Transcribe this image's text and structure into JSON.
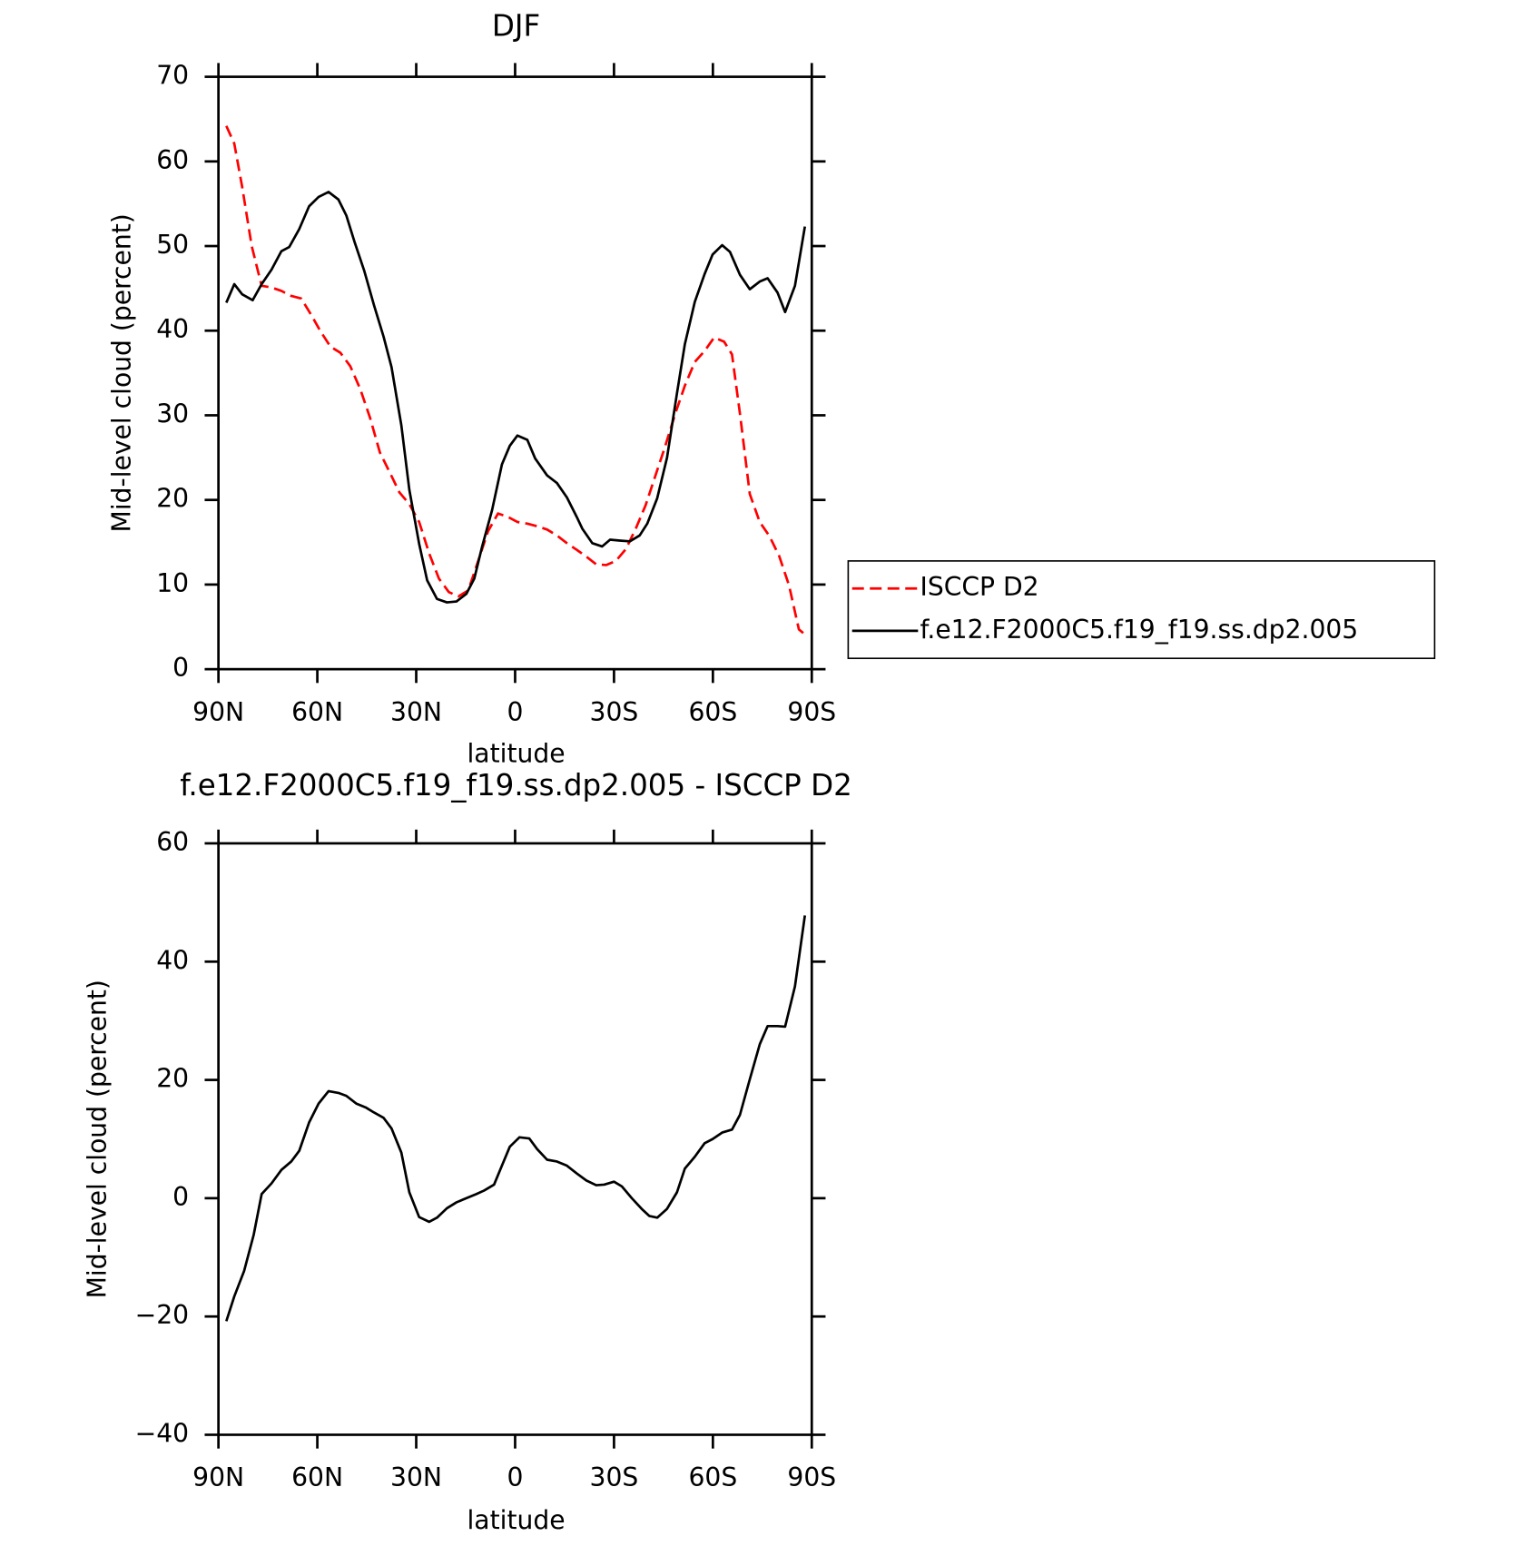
{
  "chart_data": [
    {
      "type": "line",
      "title": "DJF",
      "xlabel": "latitude",
      "ylabel": "Mid-level cloud (percent)",
      "xlim": [
        90,
        -90
      ],
      "xticks": [
        {
          "value": 90,
          "label": "90N"
        },
        {
          "value": 60,
          "label": "60N"
        },
        {
          "value": 30,
          "label": "30N"
        },
        0,
        {
          "value": -30,
          "label": "30S"
        },
        {
          "value": -60,
          "label": "60S"
        },
        {
          "value": -90,
          "label": "90S"
        }
      ],
      "ylim": [
        0,
        70
      ],
      "yticks": [
        0,
        10,
        20,
        30,
        40,
        50,
        60,
        70
      ],
      "legend": "right",
      "series": [
        {
          "name": "ISCCP D2",
          "color": "#ff0000",
          "linestyle": "dashed",
          "x": [
            87.6,
            85.2,
            82.8,
            79.9,
            76.9,
            73.9,
            70.9,
            67.9,
            64.9,
            61.9,
            59.0,
            56.0,
            53.0,
            50.0,
            47.0,
            44.0,
            41.0,
            38.1,
            35.1,
            32.1,
            29.1,
            26.1,
            23.1,
            20.1,
            17.2,
            14.2,
            11.2,
            8.2,
            5.2,
            2.2,
            -0.7,
            -3.7,
            -6.7,
            -9.7,
            -12.7,
            -15.7,
            -18.7,
            -21.6,
            -24.6,
            -27.6,
            -30.6,
            -33.6,
            -36.6,
            -39.6,
            -42.5,
            -45.5,
            -48.5,
            -51.5,
            -54.5,
            -57.5,
            -60.4,
            -63.4,
            -65.8,
            -68.2,
            -71.2,
            -74.2,
            -77.2,
            -80.1,
            -83.1,
            -86.1,
            -87.9
          ],
          "values": [
            64.2,
            62.1,
            57.0,
            50.0,
            45.3,
            45.1,
            44.7,
            44.1,
            43.8,
            41.9,
            39.9,
            38.1,
            37.4,
            35.8,
            33.1,
            29.7,
            25.6,
            23.3,
            20.9,
            19.5,
            17.4,
            13.7,
            10.7,
            9.1,
            8.6,
            9.3,
            12.8,
            16.3,
            18.4,
            18.0,
            17.4,
            17.2,
            16.9,
            16.5,
            15.8,
            14.9,
            14.1,
            13.3,
            12.4,
            12.3,
            12.8,
            14.2,
            16.6,
            19.4,
            22.8,
            26.3,
            30.1,
            33.5,
            36.3,
            37.6,
            39.2,
            38.7,
            37.2,
            30.2,
            20.7,
            17.4,
            15.7,
            13.4,
            9.9,
            4.7,
            4.1
          ]
        },
        {
          "name": "f.e12.F2000C5.f19_f19.ss.dp2.005",
          "color": "#000000",
          "linestyle": "solid",
          "x": [
            87.6,
            85.2,
            82.8,
            79.6,
            76.9,
            73.9,
            70.9,
            68.5,
            65.5,
            62.5,
            59.6,
            56.6,
            53.6,
            51.2,
            48.8,
            45.8,
            42.8,
            39.9,
            37.5,
            34.5,
            32.1,
            29.1,
            26.7,
            23.7,
            20.7,
            17.8,
            14.8,
            12.4,
            10.0,
            7.0,
            4.0,
            1.6,
            -0.7,
            -3.7,
            -6.1,
            -9.7,
            -12.7,
            -15.7,
            -18.7,
            -20.4,
            -23.4,
            -26.4,
            -28.8,
            -31.8,
            -34.8,
            -37.8,
            -40.1,
            -43.1,
            -46.1,
            -49.1,
            -51.5,
            -54.5,
            -57.5,
            -59.9,
            -62.8,
            -65.2,
            -68.2,
            -71.2,
            -74.2,
            -76.6,
            -79.6,
            -81.9,
            -84.9,
            -87.9
          ],
          "values": [
            43.3,
            45.5,
            44.3,
            43.6,
            45.5,
            47.2,
            49.4,
            49.9,
            52.0,
            54.7,
            55.8,
            56.4,
            55.5,
            53.6,
            50.6,
            47.1,
            43.0,
            39.3,
            35.7,
            28.8,
            21.2,
            14.8,
            10.5,
            8.3,
            7.9,
            8.0,
            8.9,
            10.7,
            14.5,
            18.8,
            24.2,
            26.4,
            27.6,
            27.1,
            24.9,
            22.9,
            22.0,
            20.3,
            18.0,
            16.6,
            14.9,
            14.5,
            15.3,
            15.2,
            15.1,
            15.8,
            17.2,
            20.2,
            25.0,
            32.6,
            38.4,
            43.4,
            46.7,
            49.0,
            50.1,
            49.3,
            46.6,
            44.9,
            45.8,
            46.2,
            44.5,
            42.2,
            45.3,
            52.3
          ]
        }
      ]
    },
    {
      "type": "line",
      "title": "f.e12.F2000C5.f19_f19.ss.dp2.005 - ISCCP D2",
      "xlabel": "latitude",
      "ylabel": "Mid-level cloud (percent)",
      "xlim": [
        90,
        -90
      ],
      "xticks": [
        {
          "value": 90,
          "label": "90N"
        },
        {
          "value": 60,
          "label": "60N"
        },
        {
          "value": 30,
          "label": "30N"
        },
        0,
        {
          "value": -30,
          "label": "30S"
        },
        {
          "value": -60,
          "label": "60S"
        },
        {
          "value": -90,
          "label": "90S"
        }
      ],
      "ylim": [
        -40,
        60
      ],
      "yticks": [
        {
          "value": -40,
          "label": "−40"
        },
        {
          "value": -20,
          "label": "−20"
        },
        0,
        20,
        40,
        60
      ],
      "series": [
        {
          "color": "#000000",
          "linestyle": "solid",
          "x": [
            87.6,
            85.2,
            82.2,
            79.3,
            76.9,
            73.9,
            70.9,
            67.9,
            65.5,
            62.5,
            59.6,
            56.6,
            53.6,
            51.2,
            48.2,
            45.2,
            42.8,
            39.9,
            37.5,
            34.5,
            32.1,
            29.1,
            26.1,
            23.7,
            20.7,
            17.8,
            14.8,
            11.8,
            9.4,
            6.4,
            4.0,
            1.6,
            -1.3,
            -4.3,
            -6.7,
            -9.7,
            -12.7,
            -15.7,
            -18.7,
            -21.6,
            -24.6,
            -27.0,
            -30.0,
            -32.4,
            -35.4,
            -38.4,
            -40.7,
            -43.1,
            -46.1,
            -49.1,
            -51.5,
            -54.5,
            -57.5,
            -59.9,
            -62.8,
            -65.8,
            -68.2,
            -71.2,
            -74.2,
            -76.6,
            -79.6,
            -81.9,
            -84.9,
            -87.9
          ],
          "values": [
            -20.8,
            -16.6,
            -12.3,
            -6.2,
            0.7,
            2.5,
            4.8,
            6.2,
            8.0,
            12.8,
            16.0,
            18.1,
            17.8,
            17.3,
            16.0,
            15.3,
            14.5,
            13.6,
            11.8,
            7.7,
            1.0,
            -3.2,
            -4.0,
            -3.3,
            -1.7,
            -0.7,
            0,
            0.7,
            1.3,
            2.3,
            5.5,
            8.7,
            10.3,
            10.1,
            8.3,
            6.5,
            6.2,
            5.5,
            4.2,
            3.0,
            2.2,
            2.3,
            2.8,
            2.0,
            0,
            -1.8,
            -3.0,
            -3.3,
            -1.8,
            1.0,
            5.0,
            7.0,
            9.3,
            10.0,
            11.1,
            11.6,
            14.1,
            20.1,
            26.0,
            29.1,
            29.1,
            29.0,
            35.8,
            47.8
          ]
        }
      ]
    }
  ]
}
